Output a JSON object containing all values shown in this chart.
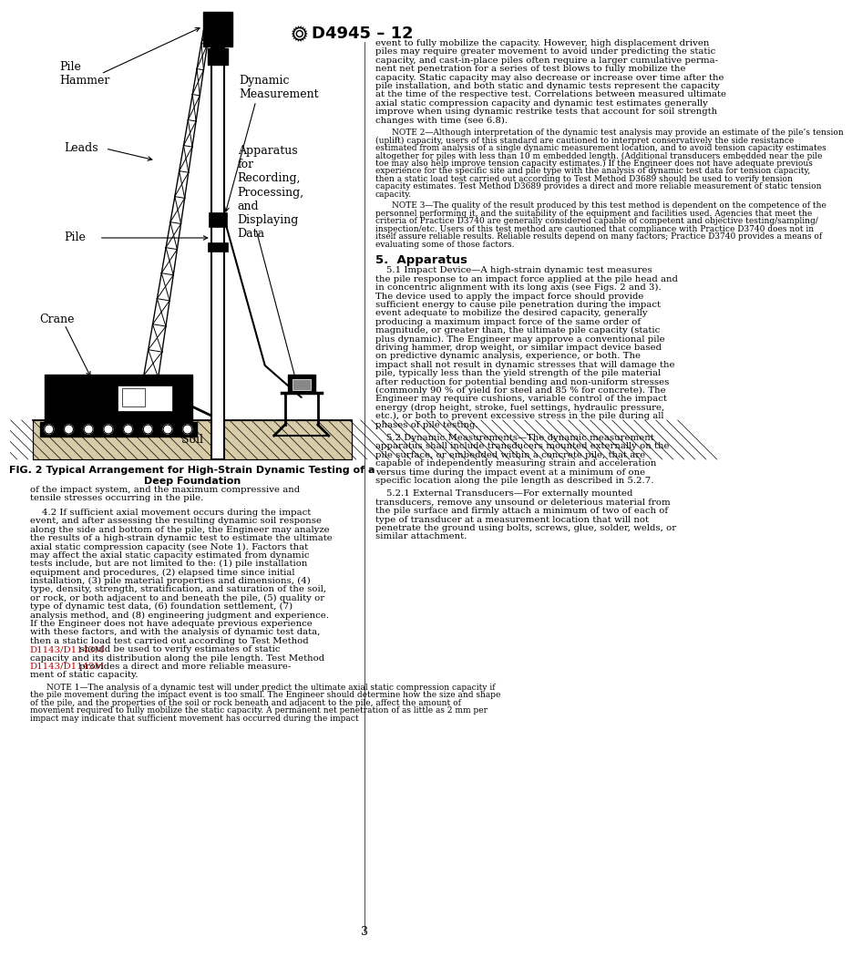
{
  "background_color": "#ffffff",
  "header_text": "D4945 – 12",
  "page_number": "3",
  "fig_caption_line1": "FIG. 2 Typical Arrangement for High-Strain Dynamic Testing of a",
  "fig_caption_line2": "Deep Foundation",
  "right_col_lines": [
    "event to fully mobilize the capacity. However, high displacement driven",
    "piles may require greater movement to avoid under predicting the static",
    "capacity, and cast-in-place piles often require a larger cumulative perma-",
    "nent net penetration for a series of test blows to fully mobilize the",
    "capacity. Static capacity may also decrease or increase over time after the",
    "pile installation, and both static and dynamic tests represent the capacity",
    "at the time of the respective test. Correlations between measured ultimate",
    "axial static compression capacity and dynamic test estimates generally",
    "improve when using dynamic restrike tests that account for soil strength",
    "changes with time (see 6.8)."
  ],
  "note2_lines": [
    "NOTE 2—Although interpretation of the dynamic test analysis may provide an estimate of the pile’s tension",
    "(uplift) capacity, users of this standard are cautioned to interpret conservatively the side resistance",
    "estimated from analysis of a single dynamic measurement location, and to avoid tension capacity estimates",
    "altogether for piles with less than 10 m embedded length. (Additional transducers embedded near the pile",
    "toe may also help improve tension capacity estimates.) If the Engineer does not have adequate previous",
    "experience for the specific site and pile type with the analysis of dynamic test data for tension capacity,",
    "then a static load test carried out according to Test Method D3689 should be used to verify tension",
    "capacity estimates. Test Method D3689 provides a direct and more reliable measurement of static tension",
    "capacity."
  ],
  "note3_lines": [
    "NOTE 3—The quality of the result produced by this test method is dependent on the competence of the",
    "personnel performing it, and the suitability of the equipment and facilities used. Agencies that meet the",
    "criteria of Practice D3740 are generally considered capable of competent and objective testing/sampling/",
    "inspection/etc. Users of this test method are cautioned that compliance with Practice D3740 does not in",
    "itself assure reliable results. Reliable results depend on many factors; Practice D3740 provides a means of",
    "evaluating some of those factors."
  ],
  "s5_header": "5.  Apparatus",
  "s51_lines": [
    "5.1 Impact Device—A high-strain dynamic test measures",
    "the pile response to an impact force applied at the pile head and",
    "in concentric alignment with its long axis (see Figs. 2 and 3).",
    "The device used to apply the impact force should provide",
    "sufficient energy to cause pile penetration during the impact",
    "event adequate to mobilize the desired capacity, generally",
    "producing a maximum impact force of the same order of",
    "magnitude, or greater than, the ultimate pile capacity (static",
    "plus dynamic). The Engineer may approve a conventional pile",
    "driving hammer, drop weight, or similar impact device based",
    "on predictive dynamic analysis, experience, or both. The",
    "impact shall not result in dynamic stresses that will damage the",
    "pile, typically less than the yield strength of the pile material",
    "after reduction for potential bending and non-uniform stresses",
    "(commonly 90 % of yield for steel and 85 % for concrete). The",
    "Engineer may require cushions, variable control of the impact",
    "energy (drop height, stroke, fuel settings, hydraulic pressure,",
    "etc.), or both to prevent excessive stress in the pile during all",
    "phases of pile testing."
  ],
  "s52_lines": [
    "5.2 Dynamic Measurements—The dynamic measurement",
    "apparatus shall include transducers mounted externally on the",
    "pile surface, or embedded within a concrete pile, that are",
    "capable of independently measuring strain and acceleration",
    "versus time during the impact event at a minimum of one",
    "specific location along the pile length as described in 5.2.7."
  ],
  "s521_lines": [
    "5.2.1 External Transducers—For externally mounted",
    "transducers, remove any unsound or deleterious material from",
    "the pile surface and firmly attach a minimum of two of each of",
    "type of transducer at a measurement location that will not",
    "penetrate the ground using bolts, screws, glue, solder, welds, or",
    "similar attachment."
  ],
  "left_bottom_lines": [
    "of the impact system, and the maximum compressive and",
    "tensile stresses occurring in the pile."
  ],
  "s42_lines": [
    "    4.2 If sufficient axial movement occurs during the impact",
    "event, and after assessing the resulting dynamic soil response",
    "along the side and bottom of the pile, the Engineer may analyze",
    "the results of a high-strain dynamic test to estimate the ultimate",
    "axial static compression capacity (see Note 1). Factors that",
    "may affect the axial static capacity estimated from dynamic",
    "tests include, but are not limited to the: (1) pile installation",
    "equipment and procedures, (2) elapsed time since initial",
    "installation, (3) pile material properties and dimensions, (4)",
    "type, density, strength, stratification, and saturation of the soil,",
    "or rock, or both adjacent to and beneath the pile, (5) quality or",
    "type of dynamic test data, (6) foundation settlement, (7)",
    "analysis method, and (8) engineering judgment and experience.",
    "If the Engineer does not have adequate previous experience",
    "with these factors, and with the analysis of dynamic test data,",
    "then a static load test carried out according to Test Method",
    "D1143/D1143M should be used to verify estimates of static",
    "capacity and its distribution along the pile length. Test Method",
    "D1143/D1143M provides a direct and more reliable measure-",
    "ment of static capacity."
  ],
  "note1_lines": [
    "NOTE 1—The analysis of a dynamic test will under predict the ultimate axial static compression capacity if",
    "the pile movement during the impact event is too small. The Engineer should determine how the size and shape",
    "of the pile, and the properties of the soil or rock beneath and adjacent to the pile, affect the amount of",
    "movement required to fully mobilize the static capacity. A permanent net penetration of as little as 2 mm per",
    "impact may indicate that sufficient movement has occurred during the impact"
  ],
  "red_links_s42": [
    "D1143/D1143M",
    "D1143/D1143M"
  ],
  "red_links_note2": [
    "D3689",
    "D3689"
  ],
  "red_links_note3": [
    "D3740",
    "D3740",
    "D3740"
  ],
  "red_links_s51": [
    "Figs. 2 and 3"
  ],
  "red_links_s52": [
    "5.2.7"
  ],
  "red_links_s521": [],
  "red_color": "#c00000"
}
